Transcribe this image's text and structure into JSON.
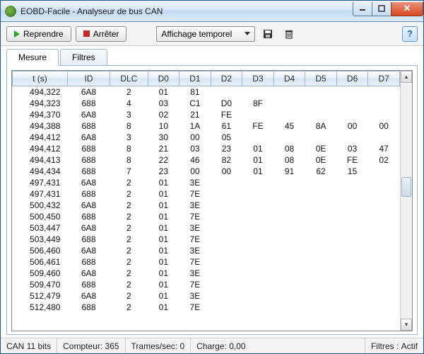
{
  "window": {
    "title": "EOBD-Facile - Analyseur de bus CAN"
  },
  "toolbar": {
    "resume_label": "Reprendre",
    "stop_label": "Arrêter",
    "display_mode": "Affichage temporel"
  },
  "tabs": {
    "measure": "Mesure",
    "filters": "Filtres"
  },
  "columns": [
    "t (s)",
    "ID",
    "DLC",
    "D0",
    "D1",
    "D2",
    "D3",
    "D4",
    "D5",
    "D6",
    "D7"
  ],
  "rows": [
    [
      "494,322",
      "6A8",
      "2",
      "01",
      "81",
      "",
      "",
      "",
      "",
      "",
      ""
    ],
    [
      "494,323",
      "688",
      "4",
      "03",
      "C1",
      "D0",
      "8F",
      "",
      "",
      "",
      ""
    ],
    [
      "494,370",
      "6A8",
      "3",
      "02",
      "21",
      "FE",
      "",
      "",
      "",
      "",
      ""
    ],
    [
      "494,388",
      "688",
      "8",
      "10",
      "1A",
      "61",
      "FE",
      "45",
      "8A",
      "00",
      "00"
    ],
    [
      "494,412",
      "6A8",
      "3",
      "30",
      "00",
      "05",
      "",
      "",
      "",
      "",
      ""
    ],
    [
      "494,412",
      "688",
      "8",
      "21",
      "03",
      "23",
      "01",
      "08",
      "0E",
      "03",
      "47"
    ],
    [
      "494,413",
      "688",
      "8",
      "22",
      "46",
      "82",
      "01",
      "08",
      "0E",
      "FE",
      "02"
    ],
    [
      "494,434",
      "688",
      "7",
      "23",
      "00",
      "00",
      "01",
      "91",
      "62",
      "15",
      ""
    ],
    [
      "497,431",
      "6A8",
      "2",
      "01",
      "3E",
      "",
      "",
      "",
      "",
      "",
      ""
    ],
    [
      "497,431",
      "688",
      "2",
      "01",
      "7E",
      "",
      "",
      "",
      "",
      "",
      ""
    ],
    [
      "500,432",
      "6A8",
      "2",
      "01",
      "3E",
      "",
      "",
      "",
      "",
      "",
      ""
    ],
    [
      "500,450",
      "688",
      "2",
      "01",
      "7E",
      "",
      "",
      "",
      "",
      "",
      ""
    ],
    [
      "503,447",
      "6A8",
      "2",
      "01",
      "3E",
      "",
      "",
      "",
      "",
      "",
      ""
    ],
    [
      "503,449",
      "688",
      "2",
      "01",
      "7E",
      "",
      "",
      "",
      "",
      "",
      ""
    ],
    [
      "506,460",
      "6A8",
      "2",
      "01",
      "3E",
      "",
      "",
      "",
      "",
      "",
      ""
    ],
    [
      "506,461",
      "688",
      "2",
      "01",
      "7E",
      "",
      "",
      "",
      "",
      "",
      ""
    ],
    [
      "509,460",
      "6A8",
      "2",
      "01",
      "3E",
      "",
      "",
      "",
      "",
      "",
      ""
    ],
    [
      "509,470",
      "688",
      "2",
      "01",
      "7E",
      "",
      "",
      "",
      "",
      "",
      ""
    ],
    [
      "512,479",
      "6A8",
      "2",
      "01",
      "3E",
      "",
      "",
      "",
      "",
      "",
      ""
    ],
    [
      "512,480",
      "688",
      "2",
      "01",
      "7E",
      "",
      "",
      "",
      "",
      "",
      ""
    ]
  ],
  "status": {
    "can_mode": "CAN 11 bits",
    "counter_label": "Compteur:",
    "counter_value": "365",
    "fps_label": "Trames/sec:",
    "fps_value": "0",
    "load_label": "Charge:",
    "load_value": "0,00",
    "filters_label": "Filtres :",
    "filters_value": "Actif"
  },
  "colors": {
    "header_gradient_top": "#fdfefe",
    "header_gradient_bottom": "#d7e6f4",
    "border": "#9bb4cf",
    "play_green": "#2aa22a",
    "stop_red": "#c62828",
    "close_red": "#d6461d"
  }
}
